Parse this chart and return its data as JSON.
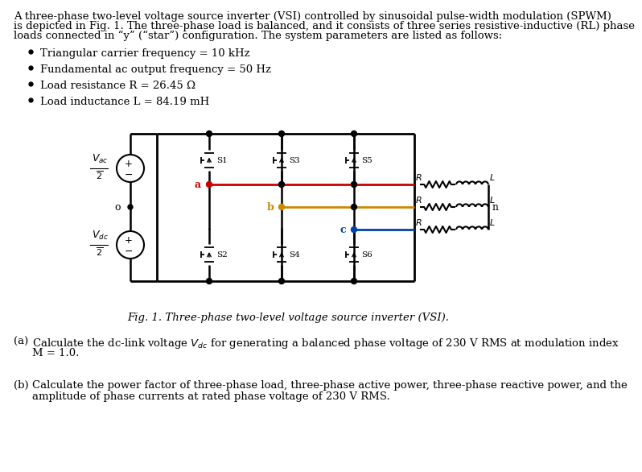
{
  "bg_color": "#ffffff",
  "text_color": "#000000",
  "font_size": 9.5,
  "intro_line1": "A three-phase two-level voltage source inverter (VSI) controlled by sinusoidal pulse-width modulation (SPWM)",
  "intro_line2": "is depicted in Fig. 1. The three-phase load is balanced, and it consists of three series resistive-inductive (RL) phase",
  "intro_line3": "loads connected in “y” (“star”) configuration. The system parameters are listed as follows:",
  "bullets": [
    "Triangular carrier frequency = 10 kHz",
    "Fundamental ac output frequency = 50 Hz",
    "Load resistance R = 26.45 Ω",
    "Load inductance L = 84.19 mH"
  ],
  "fig_caption": "Fig. 1. Three-phase two-level voltage source inverter (VSI).",
  "part_a_label": "(a)",
  "part_a_line1": "Calculate the dc-link voltage Vᴅc for generating a balanced phase voltage of 230 V RMS at modulation index",
  "part_a_line2": "M = 1.0.",
  "part_b_label": "(b)",
  "part_b_line1": "Calculate the power factor of three-phase load, three-phase active power, three-phase reactive power, and the",
  "part_b_line2": "amplitude of phase currents at rated phase voltage of 230 V RMS.",
  "color_a": "#cc0000",
  "color_b": "#cc8800",
  "color_c": "#0044aa"
}
